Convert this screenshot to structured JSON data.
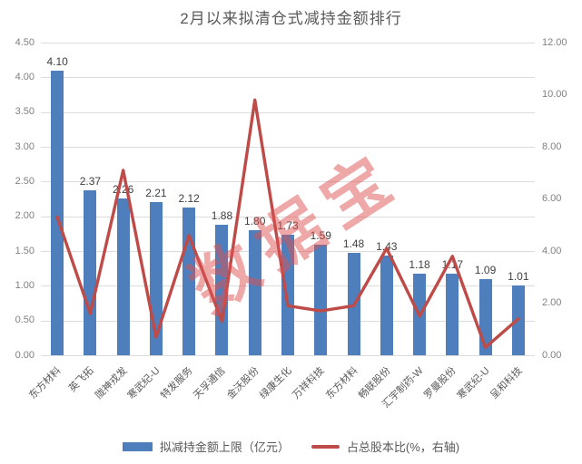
{
  "watermark": "数据宝",
  "colors": {
    "bar": "#4E7EBB",
    "line": "#BE4B48",
    "grid": "#DCDCDC",
    "axis_text": "#808080",
    "data_label_text": "#404040",
    "title_text": "#595959",
    "watermark_text": "rgba(223,82,82,0.5)"
  },
  "chart_data": {
    "type": "bar",
    "title": "2月以来拟清仓式减持金额排行",
    "categories": [
      "东方材料",
      "英飞拓",
      "陇神戎发",
      "寒武纪-U",
      "特发服务",
      "天孚通信",
      "金沃股份",
      "绿康生化",
      "万祥科技",
      "东方材料",
      "畅联股份",
      "汇宇制药-W",
      "罗曼股份",
      "寒武纪-U",
      "呈和科技"
    ],
    "series": [
      {
        "name": "拟减持金额上限（亿元）",
        "type": "bar",
        "axis": "left",
        "values": [
          4.1,
          2.37,
          2.26,
          2.21,
          2.12,
          1.88,
          1.8,
          1.73,
          1.59,
          1.48,
          1.43,
          1.18,
          1.17,
          1.09,
          1.01
        ],
        "labels": [
          "4.10",
          "2.37",
          "2.26",
          "2.21",
          "2.12",
          "1.88",
          "1.80",
          "1.73",
          "1.59",
          "1.48",
          "1.43",
          "1.18",
          "1.17",
          "1.09",
          "1.01"
        ]
      },
      {
        "name": "占总股本比(%，右轴)",
        "type": "line",
        "axis": "right",
        "values": [
          5.3,
          1.6,
          7.1,
          0.7,
          4.6,
          1.3,
          9.8,
          1.9,
          1.7,
          1.9,
          4.1,
          1.5,
          3.8,
          0.3,
          1.4
        ]
      }
    ],
    "left_axis": {
      "min": 0,
      "max": 4.5,
      "step": 0.5,
      "ticks": [
        "0.00",
        "0.50",
        "1.00",
        "1.50",
        "2.00",
        "2.50",
        "3.00",
        "3.50",
        "4.00",
        "4.50"
      ]
    },
    "right_axis": {
      "min": 0,
      "max": 12,
      "step": 2,
      "ticks": [
        "0.00",
        "2.00",
        "4.00",
        "6.00",
        "8.00",
        "10.00",
        "12.00"
      ]
    },
    "grid": true,
    "legend_position": "bottom"
  }
}
